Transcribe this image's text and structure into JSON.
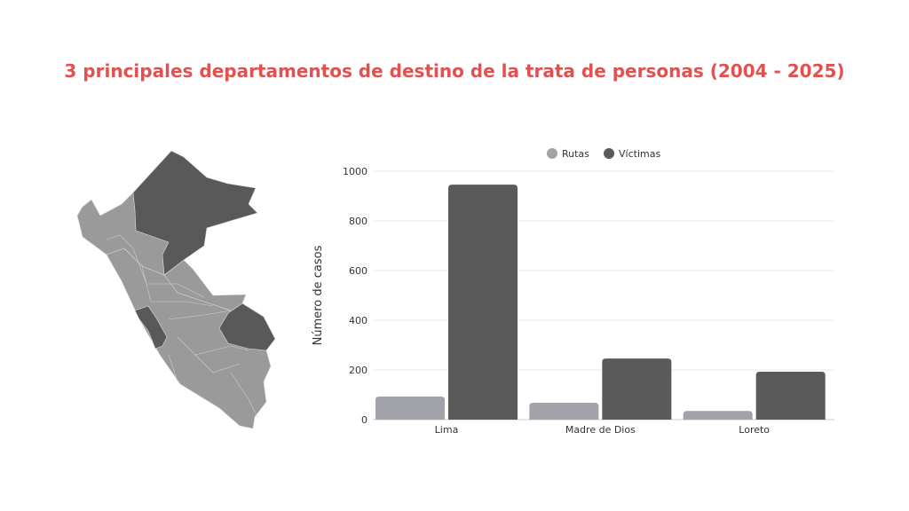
{
  "title": "3 principales departamentos de destino de la trata de personas (2004 - 2025)",
  "map": {
    "highlighted": [
      "Loreto",
      "Madre de Dios",
      "Lima"
    ],
    "highlight_color": "#595959",
    "base_color": "#9a9a9a"
  },
  "chart_data": {
    "type": "bar",
    "title": "",
    "xlabel": "",
    "ylabel": "Número de casos",
    "categories": [
      "Lima",
      "Madre de Dios",
      "Loreto"
    ],
    "series": [
      {
        "name": "Rutas",
        "values": [
          93,
          68,
          35
        ],
        "color": "#a2a3a8"
      },
      {
        "name": "Víctimas",
        "values": [
          946,
          246,
          193
        ],
        "color": "#5a5a5a"
      }
    ],
    "ylim": [
      0,
      1000
    ],
    "yticks": [
      0,
      200,
      400,
      600,
      800,
      1000
    ],
    "grid": true,
    "legend": "top"
  }
}
